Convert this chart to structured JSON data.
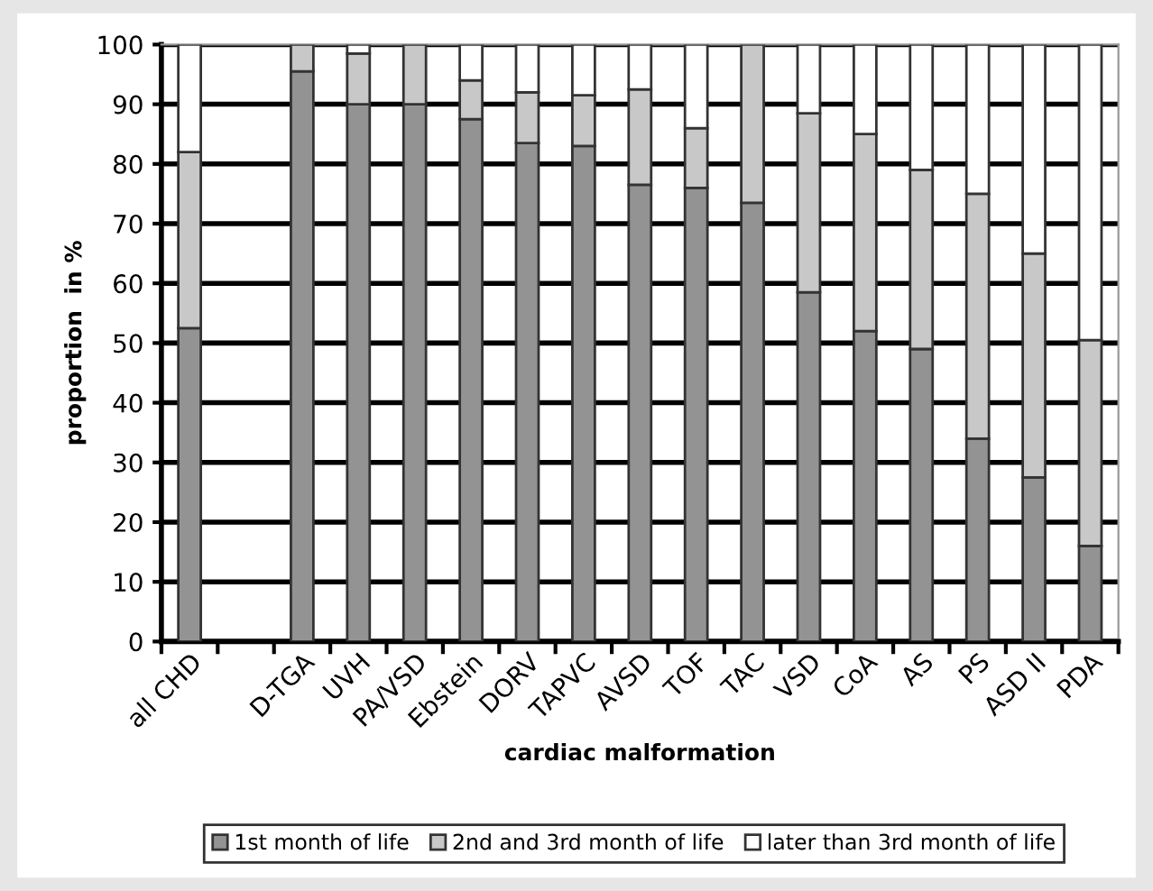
{
  "chart_data": {
    "type": "bar",
    "stacked": true,
    "xlabel": "cardiac malformation",
    "ylabel": "proportion  in %",
    "categories": [
      "all CHD",
      null,
      "D-TGA",
      "UVH",
      "PA/VSD",
      "Ebstein",
      "DORV",
      "TAPVC",
      "AVSD",
      "TOF",
      "TAC",
      "VSD",
      "CoA",
      "AS",
      "PS",
      "ASD II",
      "PDA"
    ],
    "series": [
      {
        "name": "1st month of life",
        "color": "#939393",
        "values": [
          52.5,
          null,
          95.5,
          90,
          90,
          87.5,
          83.5,
          83,
          76.5,
          76,
          73.5,
          58.5,
          52,
          49,
          34,
          27.5,
          16
        ]
      },
      {
        "name": "2nd and 3rd month of life",
        "color": "#c8c8c8",
        "values": [
          29.5,
          null,
          4.5,
          8.5,
          10,
          6.5,
          8.5,
          8.5,
          16,
          10,
          26.5,
          30,
          33,
          30,
          41,
          37.5,
          34.5
        ]
      },
      {
        "name": "later than 3rd month of life",
        "color": "#ffffff",
        "values": [
          18,
          null,
          null,
          1.5,
          null,
          6,
          8,
          8.5,
          7.5,
          14,
          null,
          11.5,
          15,
          21,
          25,
          35,
          49.5
        ]
      }
    ],
    "ylim": [
      0,
      100
    ],
    "yticks": [
      0,
      10,
      20,
      30,
      40,
      50,
      60,
      70,
      80,
      90,
      100
    ],
    "grid": "y",
    "legend": "bottom"
  }
}
